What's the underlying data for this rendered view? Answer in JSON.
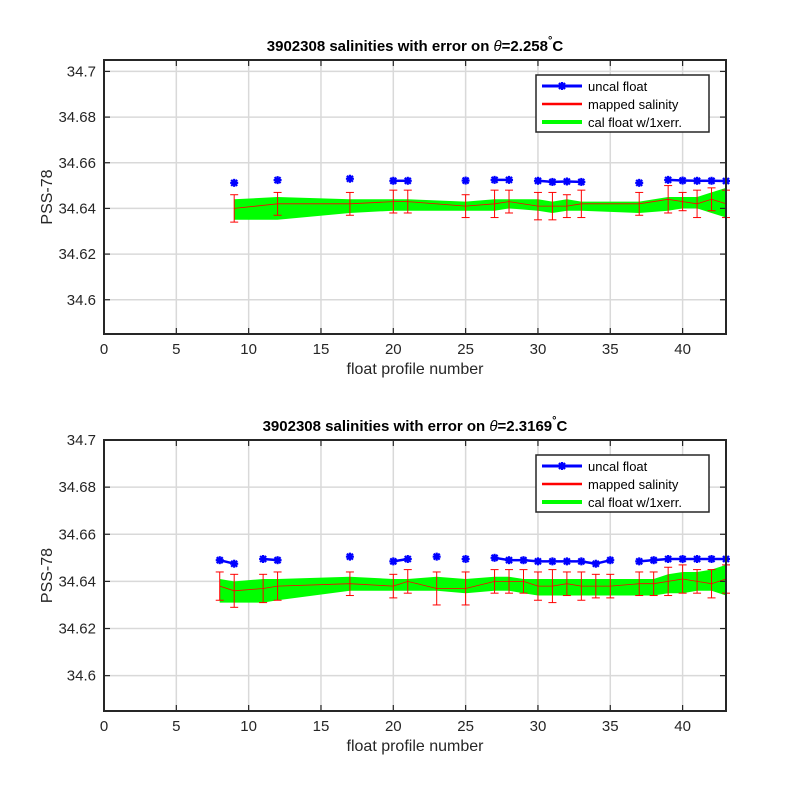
{
  "chart_data": [
    {
      "type": "line",
      "title_prefix": "3902308 salinities with error on ",
      "title_theta": "θ",
      "title_value": "=2.258",
      "title_deg": "°",
      "title_unit": "C",
      "xlabel": "float profile number",
      "ylabel": "PSS-78",
      "xlim": [
        0,
        43
      ],
      "ylim": [
        34.585,
        34.705
      ],
      "xticks": [
        0,
        5,
        10,
        15,
        20,
        25,
        30,
        35,
        40
      ],
      "yticks": [
        34.6,
        34.62,
        34.64,
        34.66,
        34.68,
        34.7
      ],
      "ytick_labels": [
        "34.6",
        "34.62",
        "34.64",
        "34.66",
        "34.68",
        "34.7"
      ],
      "grid": true,
      "legend_position": "top-right",
      "legend": [
        "uncal float",
        "mapped salinity",
        "cal float w/1xerr."
      ],
      "colors": {
        "uncal": "#0000ff",
        "mapped": "#ff0000",
        "cal": "#00ff00"
      },
      "uncal_float": {
        "x": [
          9,
          12,
          17,
          20,
          21,
          25,
          27,
          28,
          30,
          31,
          32,
          33,
          37,
          39,
          40,
          41,
          42,
          43
        ],
        "y": [
          34.6512,
          34.6524,
          34.653,
          34.6521,
          34.6521,
          34.6522,
          34.6525,
          34.6525,
          34.6521,
          34.6516,
          34.6518,
          34.6516,
          34.6512,
          34.6525,
          34.6522,
          34.6521,
          34.6521,
          34.652
        ]
      },
      "mapped_salinity": {
        "x": [
          9,
          12,
          17,
          20,
          21,
          25,
          27,
          28,
          30,
          31,
          32,
          33,
          37,
          39,
          40,
          41,
          42,
          43
        ],
        "y": [
          34.64,
          34.642,
          34.642,
          34.643,
          34.643,
          34.641,
          34.642,
          34.643,
          34.641,
          34.641,
          34.641,
          34.642,
          34.642,
          34.644,
          34.643,
          34.642,
          34.644,
          34.642
        ],
        "err": [
          0.006,
          0.005,
          0.005,
          0.005,
          0.005,
          0.005,
          0.006,
          0.005,
          0.006,
          0.006,
          0.005,
          0.006,
          0.005,
          0.006,
          0.004,
          0.006,
          0.005,
          0.006
        ]
      },
      "cal_float": {
        "x": [
          9,
          12,
          17,
          20,
          21,
          25,
          27,
          28,
          30,
          31,
          32,
          33,
          37,
          39,
          40,
          41,
          42,
          43
        ],
        "upper": [
          34.644,
          34.645,
          34.644,
          34.644,
          34.644,
          34.643,
          34.644,
          34.644,
          34.644,
          34.643,
          34.644,
          34.643,
          34.643,
          34.645,
          34.645,
          34.645,
          34.647,
          34.649
        ],
        "lower": [
          34.635,
          34.635,
          34.638,
          34.639,
          34.639,
          34.639,
          34.639,
          34.64,
          34.639,
          34.638,
          34.639,
          34.639,
          34.638,
          34.639,
          34.64,
          34.64,
          34.638,
          34.636
        ]
      }
    },
    {
      "type": "line",
      "title_prefix": "3902308 salinities with error on ",
      "title_theta": "θ",
      "title_value": "=2.3169",
      "title_deg": "°",
      "title_unit": "C",
      "xlabel": "float profile number",
      "ylabel": "PSS-78",
      "xlim": [
        0,
        43
      ],
      "ylim": [
        34.585,
        34.7
      ],
      "xticks": [
        0,
        5,
        10,
        15,
        20,
        25,
        30,
        35,
        40
      ],
      "yticks": [
        34.6,
        34.62,
        34.64,
        34.66,
        34.68,
        34.7
      ],
      "ytick_labels": [
        "34.6",
        "34.62",
        "34.64",
        "34.66",
        "34.68",
        "34.7"
      ],
      "grid": true,
      "legend_position": "top-right",
      "legend": [
        "uncal float",
        "mapped salinity",
        "cal float w/1xerr."
      ],
      "colors": {
        "uncal": "#0000ff",
        "mapped": "#ff0000",
        "cal": "#00ff00"
      },
      "uncal_float": {
        "x": [
          8,
          9,
          11,
          12,
          17,
          20,
          21,
          23,
          25,
          27,
          28,
          29,
          30,
          31,
          32,
          33,
          34,
          35,
          37,
          38,
          39,
          40,
          41,
          42,
          43
        ],
        "y": [
          34.649,
          34.6475,
          34.6495,
          34.649,
          34.6505,
          34.6485,
          34.6495,
          34.6505,
          34.6495,
          34.65,
          34.649,
          34.649,
          34.6485,
          34.6485,
          34.6485,
          34.6485,
          34.6475,
          34.649,
          34.6485,
          34.649,
          34.6495,
          34.6495,
          34.6495,
          34.6495,
          34.6495
        ]
      },
      "mapped_salinity": {
        "x": [
          8,
          9,
          11,
          12,
          17,
          20,
          21,
          23,
          25,
          27,
          28,
          29,
          30,
          31,
          32,
          33,
          34,
          35,
          37,
          38,
          39,
          40,
          41,
          42,
          43
        ],
        "y": [
          34.638,
          34.636,
          34.637,
          34.638,
          34.639,
          34.638,
          34.64,
          34.637,
          34.637,
          34.64,
          34.64,
          34.64,
          34.638,
          34.638,
          34.639,
          34.638,
          34.638,
          34.638,
          34.639,
          34.639,
          34.64,
          34.641,
          34.64,
          34.639,
          34.641
        ],
        "err": [
          0.006,
          0.007,
          0.006,
          0.006,
          0.005,
          0.005,
          0.005,
          0.007,
          0.007,
          0.005,
          0.005,
          0.005,
          0.006,
          0.007,
          0.005,
          0.006,
          0.005,
          0.005,
          0.005,
          0.005,
          0.006,
          0.006,
          0.005,
          0.006,
          0.006
        ]
      },
      "cal_float": {
        "x": [
          8,
          9,
          11,
          12,
          17,
          20,
          21,
          23,
          25,
          27,
          28,
          29,
          30,
          31,
          32,
          33,
          34,
          35,
          37,
          38,
          39,
          40,
          41,
          42,
          43
        ],
        "upper": [
          34.641,
          34.64,
          34.641,
          34.641,
          34.642,
          34.641,
          34.641,
          34.642,
          34.641,
          34.642,
          34.642,
          34.641,
          34.641,
          34.641,
          34.641,
          34.641,
          34.641,
          34.641,
          34.641,
          34.641,
          34.643,
          34.644,
          34.644,
          34.645,
          34.647
        ],
        "lower": [
          34.631,
          34.631,
          34.631,
          34.632,
          34.636,
          34.636,
          34.636,
          34.636,
          34.635,
          34.636,
          34.636,
          34.635,
          34.634,
          34.634,
          34.634,
          34.634,
          34.634,
          34.634,
          34.634,
          34.634,
          34.635,
          34.635,
          34.636,
          34.636,
          34.634
        ]
      }
    }
  ]
}
